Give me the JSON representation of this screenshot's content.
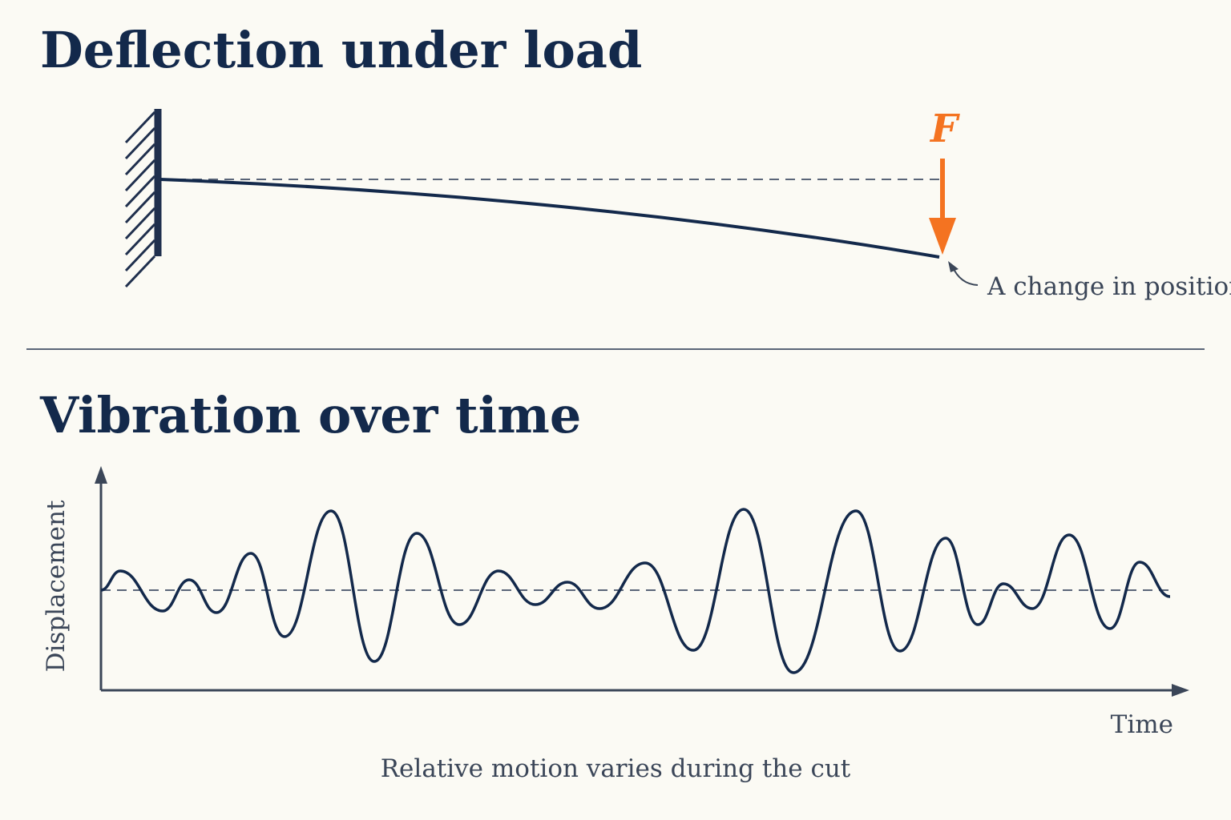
{
  "deflection": {
    "title": "Deflection under load",
    "force_label": "F",
    "annotation": "A change in position"
  },
  "vibration": {
    "title": "Vibration over time",
    "y_axis_label": "Displacement",
    "x_axis_label": "Time",
    "caption": "Relative motion varies during the cut"
  }
}
